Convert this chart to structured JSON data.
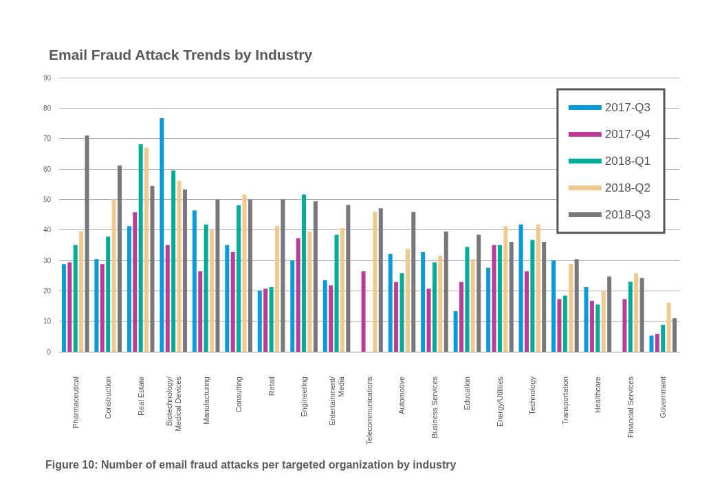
{
  "chart_data": {
    "type": "bar",
    "title": "Email Fraud Attack Trends by Industry",
    "annotations": [
      "Figure 10: Number of email fraud attacks per targeted organization by industry"
    ],
    "categories": [
      "Pharmaceutical",
      "Construction",
      "Real Estate",
      "Biotechnology/\nMedical Devices",
      "Manufacturing",
      "Consulting",
      "Retail",
      "Engineering",
      "Entertainment/\nMedia",
      "Telecommunications",
      "Automotive",
      "Business Services",
      "Education",
      "Energy/Utilities",
      "Technology",
      "Transportation",
      "Healthcare",
      "Financial Services",
      "Government"
    ],
    "series": [
      {
        "name": "2017-Q3",
        "color": "#0a9ad8",
        "values": [
          28.8,
          30.4,
          41.2,
          76.7,
          46.4,
          35,
          20.1,
          30,
          23.5,
          null,
          32.1,
          32.7,
          13.3,
          27.6,
          41.8,
          30,
          21.2,
          null,
          5.3
        ]
      },
      {
        "name": "2017-Q4",
        "color": "#b93d96",
        "values": [
          29.3,
          28.8,
          45.8,
          35,
          26.4,
          32.7,
          20.7,
          37.3,
          21.8,
          26.4,
          22.9,
          20.7,
          22.9,
          35,
          26.4,
          17.3,
          16.7,
          17.3,
          5.9
        ]
      },
      {
        "name": "2018-Q1",
        "color": "#00ac98",
        "values": [
          35,
          37.8,
          68.1,
          59.5,
          41.8,
          48.1,
          21.2,
          51.6,
          38.4,
          null,
          25.8,
          29.3,
          34.4,
          35,
          36.7,
          18.4,
          15.5,
          23,
          8.8
        ]
      },
      {
        "name": "2018-Q2",
        "color": "#f0c98e",
        "values": [
          39.6,
          50,
          67,
          56.1,
          40.1,
          51.6,
          41.2,
          39.5,
          40.6,
          45.9,
          33.8,
          31.5,
          30.4,
          41.2,
          41.8,
          28.8,
          20,
          25.8,
          16.1
        ]
      },
      {
        "name": "2018-Q3",
        "color": "#77787b",
        "values": [
          71,
          61.2,
          54.4,
          53.3,
          50,
          50,
          50,
          49.4,
          48.2,
          47.1,
          45.9,
          39.5,
          38.4,
          36.1,
          36.1,
          30.4,
          24.7,
          24.2,
          11
        ]
      }
    ],
    "ylim": [
      0,
      90
    ],
    "yticks": [
      0,
      10,
      20,
      30,
      40,
      50,
      60,
      70,
      80,
      90
    ],
    "grid": "y",
    "legend": "top right"
  }
}
